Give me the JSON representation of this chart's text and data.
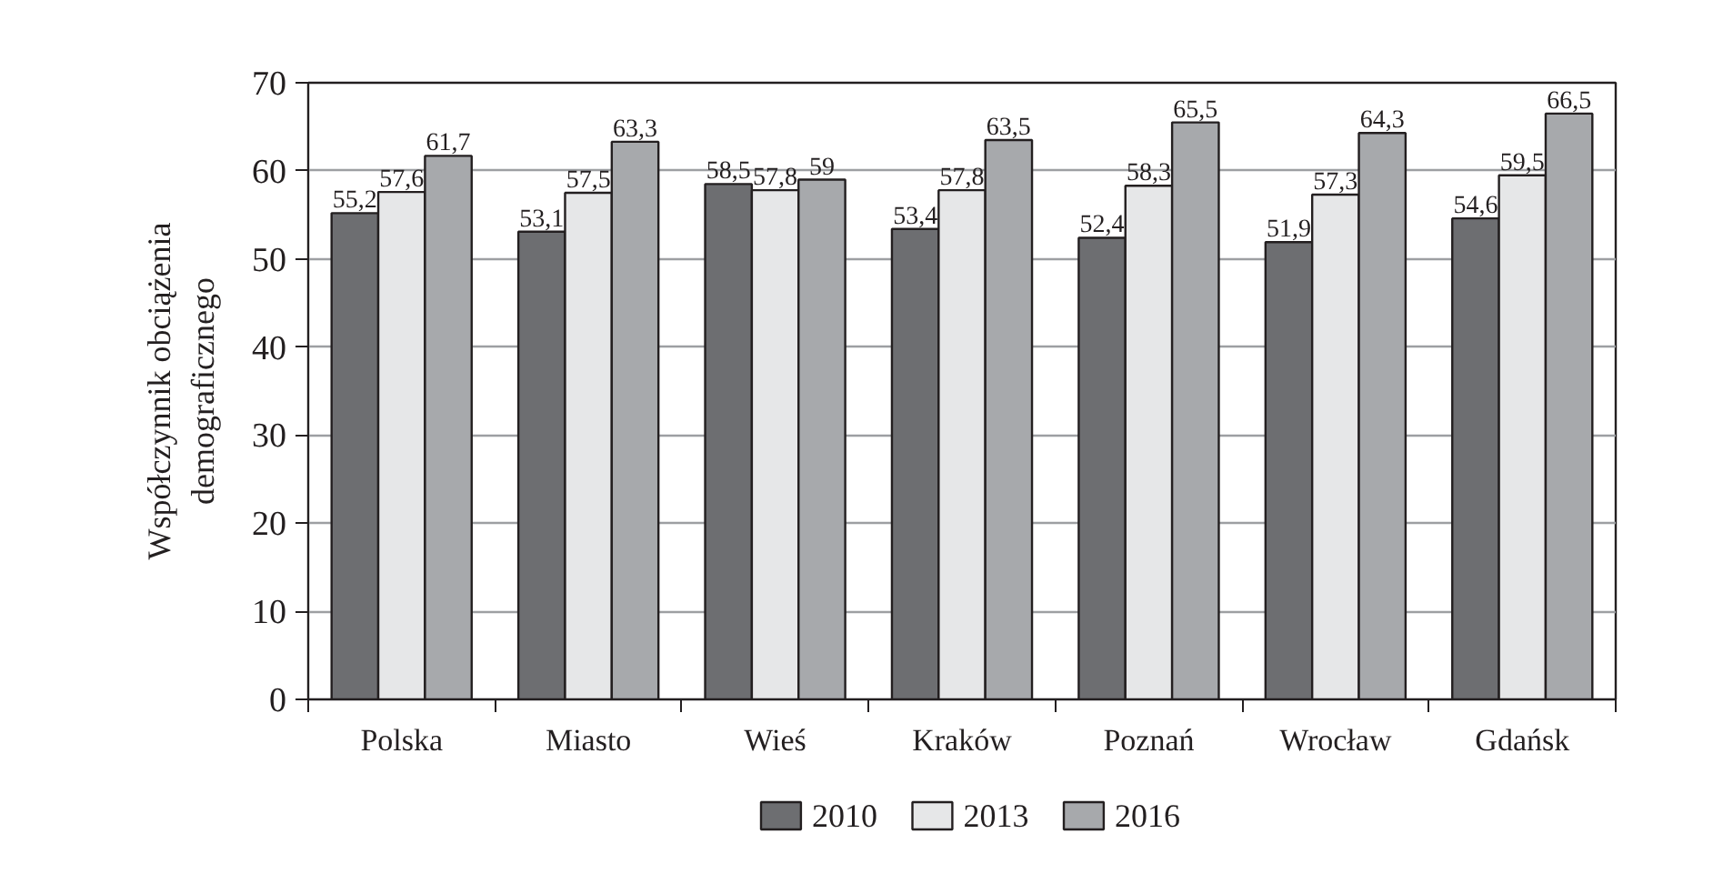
{
  "chart_data": {
    "type": "bar",
    "ylabel": "Współczynnik obciążenia\ndemograficznego",
    "categories": [
      "Polska",
      "Miasto",
      "Wieś",
      "Kraków",
      "Poznań",
      "Wrocław",
      "Gdańsk"
    ],
    "series": [
      {
        "name": "2010",
        "color": "#6d6e71",
        "values": [
          55.2,
          53.1,
          58.5,
          53.4,
          52.4,
          51.9,
          54.6
        ],
        "value_labels": [
          "55,2",
          "53,1",
          "58,5",
          "53,4",
          "52,4",
          "51,9",
          "54,6"
        ]
      },
      {
        "name": "2013",
        "color": "#e6e7e8",
        "values": [
          57.6,
          57.5,
          57.8,
          57.8,
          58.3,
          57.3,
          59.5
        ],
        "value_labels": [
          "57,6",
          "57,5",
          "57,8",
          "57,8",
          "58,3",
          "57,3",
          "59,5"
        ]
      },
      {
        "name": "2016",
        "color": "#a7a9ac",
        "values": [
          61.7,
          63.3,
          59,
          63.5,
          65.5,
          64.3,
          66.5
        ],
        "value_labels": [
          "61,7",
          "63,3",
          "59",
          "63,5",
          "65,5",
          "64,3",
          "66,5"
        ]
      }
    ],
    "ylim": [
      0,
      70
    ],
    "yticks": [
      0,
      10,
      20,
      30,
      40,
      50,
      60,
      70
    ],
    "grid": "y",
    "legend": "bottom"
  }
}
